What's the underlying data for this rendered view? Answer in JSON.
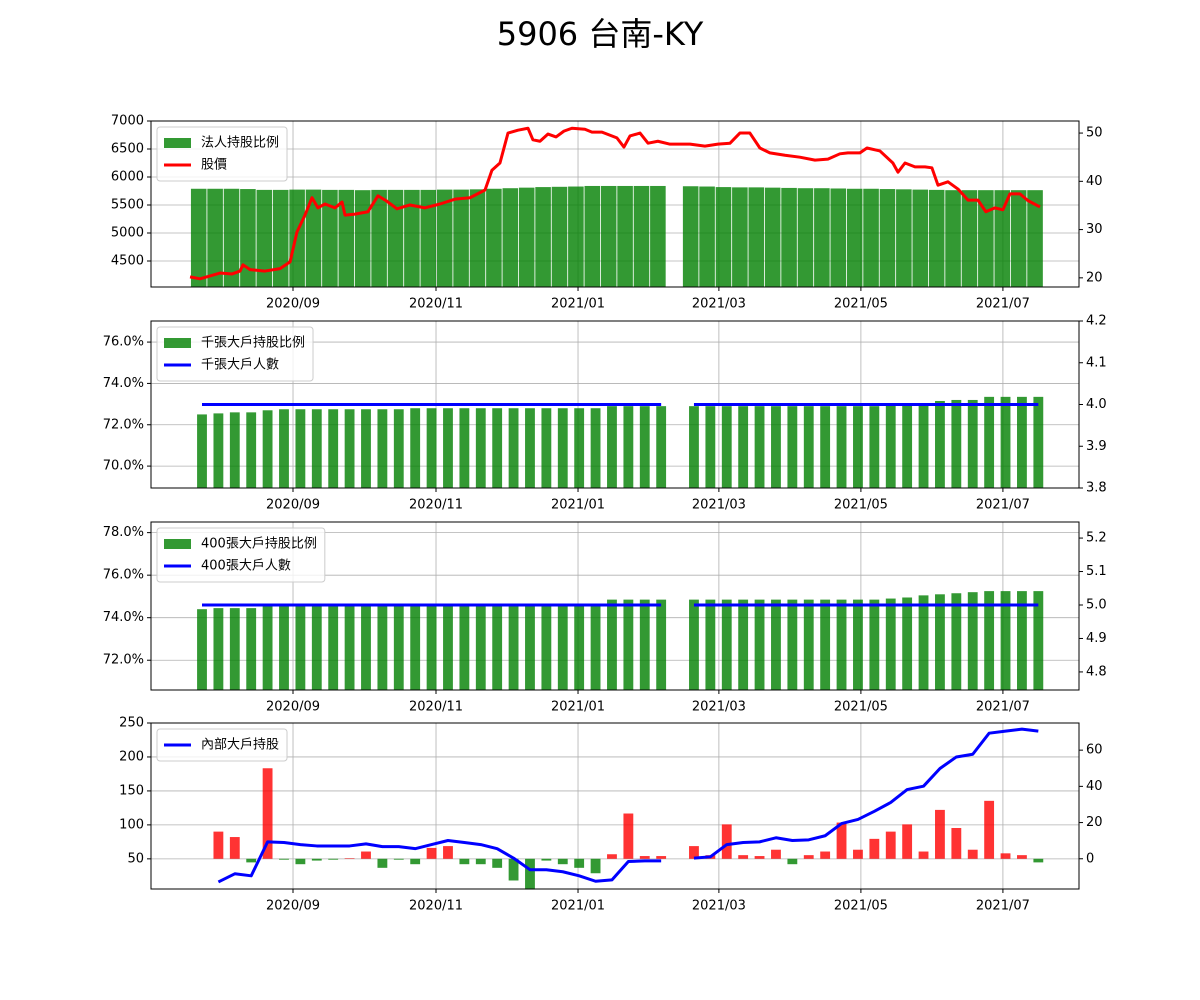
{
  "title": "5906 台南-KY",
  "chart_data": [
    {
      "type": "combo",
      "grid": true,
      "legend": "upper left",
      "xlim": [
        -3.11,
        53.48
      ],
      "xticks": [
        {
          "value": 5.55,
          "label": "2020/09"
        },
        {
          "value": 14.27,
          "label": "2020/11"
        },
        {
          "value": 22.93,
          "label": "2021/01"
        },
        {
          "value": 31.52,
          "label": "2021/03"
        },
        {
          "value": 40.18,
          "label": "2021/05"
        },
        {
          "value": 48.84,
          "label": "2021/07"
        }
      ],
      "ylim": [
        4036,
        7000
      ],
      "yticks": [
        4500,
        5000,
        5500,
        6000,
        6500,
        7000
      ],
      "y2lim": [
        18.1,
        52.5
      ],
      "y2ticks": [
        20,
        30,
        40,
        50
      ],
      "series": [
        {
          "name": "法人持股比例",
          "type": "bar",
          "color": "#008000",
          "x": [
            -0.2,
            0.8,
            1.8,
            2.8,
            3.8,
            4.8,
            5.8,
            6.8,
            7.8,
            8.8,
            9.8,
            10.8,
            11.8,
            12.8,
            13.8,
            14.8,
            15.8,
            16.8,
            17.8,
            18.8,
            19.8,
            20.8,
            21.8,
            22.8,
            23.8,
            24.8,
            25.8,
            26.8,
            27.8,
            28.8,
            29.8,
            30.8,
            31.8,
            32.8,
            33.8,
            34.8,
            35.8,
            36.8,
            37.8,
            38.8,
            39.8,
            40.8,
            41.8,
            42.8,
            43.8,
            44.8,
            45.8,
            46.8,
            47.8,
            48.8,
            49.8,
            50.8
          ],
          "values": [
            5790,
            5790,
            5790,
            5785,
            5770,
            5770,
            5775,
            5775,
            5770,
            5770,
            5765,
            5770,
            5770,
            5770,
            5770,
            5775,
            5775,
            5780,
            5790,
            5800,
            5810,
            5820,
            5825,
            5830,
            5840,
            5840,
            5840,
            5840,
            5840,
            null,
            5835,
            5830,
            5820,
            5815,
            5815,
            5810,
            5805,
            5800,
            5800,
            5795,
            5790,
            5790,
            5785,
            5780,
            5775,
            5770,
            5765,
            5765,
            5765,
            5765,
            5765,
            5765
          ]
        },
        {
          "name": "股價",
          "type": "line",
          "axis": "y2",
          "color": "#ff0000",
          "x": [
            -0.73,
            -0.12,
            0.49,
            1.1,
            1.83,
            2.32,
            2.5,
            2.93,
            3.84,
            4.76,
            5.37,
            5.79,
            6.28,
            6.71,
            7.07,
            7.5,
            8.11,
            8.54,
            8.72,
            9.33,
            10.12,
            10.73,
            11.22,
            11.89,
            12.68,
            13.6,
            14.51,
            15.43,
            16.34,
            17.26,
            17.68,
            18.17,
            18.66,
            19.27,
            19.88,
            20.18,
            20.61,
            21.1,
            21.59,
            22.07,
            22.56,
            23.35,
            23.78,
            24.39,
            25.3,
            25.73,
            26.1,
            26.71,
            27.2,
            27.8,
            28.54,
            29.76,
            30.67,
            31.46,
            32.2,
            32.8,
            33.41,
            34.02,
            34.63,
            35.55,
            36.46,
            37.38,
            38.17,
            38.9,
            39.39,
            40.12,
            40.55,
            41.34,
            42.13,
            42.44,
            42.87,
            43.48,
            44.09,
            44.51,
            44.88,
            45.49,
            46.1,
            46.71,
            47.32,
            47.8,
            48.35,
            48.84,
            49.27,
            49.88,
            50.37,
            51.1
          ],
          "values": [
            20.2,
            19.8,
            20.4,
            21.0,
            20.8,
            21.4,
            22.7,
            21.7,
            21.4,
            21.9,
            23.3,
            29.5,
            33.0,
            36.6,
            34.5,
            35.3,
            34.5,
            35.7,
            33.0,
            33.2,
            33.7,
            37.0,
            36.0,
            34.3,
            35.1,
            34.5,
            35.3,
            36.3,
            36.6,
            38.2,
            42.3,
            43.8,
            50.0,
            50.6,
            51.0,
            48.6,
            48.3,
            49.8,
            49.2,
            50.4,
            51.0,
            50.8,
            50.2,
            50.2,
            49.0,
            47.1,
            49.4,
            50.0,
            47.9,
            48.3,
            47.7,
            47.7,
            47.3,
            47.7,
            47.9,
            50.0,
            50.0,
            46.9,
            45.9,
            45.4,
            45.0,
            44.4,
            44.6,
            45.7,
            45.9,
            45.9,
            46.9,
            46.3,
            43.8,
            41.9,
            43.8,
            43.0,
            43.0,
            42.8,
            39.2,
            39.9,
            38.4,
            36.1,
            36.1,
            33.7,
            34.5,
            34.1,
            37.4,
            37.4,
            36.0,
            34.7
          ]
        }
      ]
    },
    {
      "type": "combo",
      "grid": true,
      "legend": "upper left",
      "xlim": [
        -3.11,
        53.48
      ],
      "xticks": [
        {
          "value": 5.55,
          "label": "2020/09"
        },
        {
          "value": 14.27,
          "label": "2020/11"
        },
        {
          "value": 22.93,
          "label": "2021/01"
        },
        {
          "value": 31.52,
          "label": "2021/03"
        },
        {
          "value": 40.18,
          "label": "2021/05"
        },
        {
          "value": 48.84,
          "label": "2021/07"
        }
      ],
      "categories": [
        null,
        null,
        null,
        null,
        null,
        null,
        null,
        null,
        null,
        null,
        null,
        null,
        null,
        null,
        null,
        null,
        null,
        null,
        null,
        null,
        null,
        null,
        null,
        null,
        null,
        null,
        null,
        null,
        null,
        null,
        null,
        null,
        null,
        null,
        null,
        null,
        null,
        null,
        null,
        null,
        null,
        null,
        null,
        null,
        null,
        null,
        null,
        null,
        null,
        null,
        null,
        null
      ],
      "ylim": [
        68.94,
        77.02
      ],
      "yticks": [
        {
          "value": 70,
          "label": "70.0%"
        },
        {
          "value": 72,
          "label": "72.0%"
        },
        {
          "value": 74,
          "label": "74.0%"
        },
        {
          "value": 76,
          "label": "76.0%"
        }
      ],
      "y2lim": [
        3.8,
        4.2
      ],
      "y2ticks": [
        3.8,
        3.9,
        {
          "value": 4,
          "label": "4.0"
        },
        4.1,
        4.2
      ],
      "series": [
        {
          "name": "千張大戶持股比例",
          "type": "bar",
          "color": "#008000",
          "values": [
            72.5,
            72.55,
            72.6,
            72.6,
            72.7,
            72.75,
            72.75,
            72.75,
            72.75,
            72.75,
            72.75,
            72.75,
            72.75,
            72.8,
            72.8,
            72.8,
            72.8,
            72.8,
            72.8,
            72.8,
            72.8,
            72.8,
            72.8,
            72.8,
            72.8,
            72.9,
            72.9,
            72.9,
            72.9,
            null,
            72.9,
            72.9,
            72.9,
            72.9,
            72.9,
            72.9,
            72.9,
            72.9,
            72.9,
            72.9,
            72.9,
            72.9,
            73.0,
            73.05,
            73.05,
            73.15,
            73.2,
            73.2,
            73.35,
            73.35,
            73.35,
            73.35
          ]
        },
        {
          "name": "千張大戶人數",
          "type": "line",
          "axis": "y2",
          "color": "#0000ff",
          "values": [
            4,
            4,
            4,
            4,
            4,
            4,
            4,
            4,
            4,
            4,
            4,
            4,
            4,
            4,
            4,
            4,
            4,
            4,
            4,
            4,
            4,
            4,
            4,
            4,
            4,
            4,
            4,
            4,
            4,
            null,
            4,
            4,
            4,
            4,
            4,
            4,
            4,
            4,
            4,
            4,
            4,
            4,
            4,
            4,
            4,
            4,
            4,
            4,
            4,
            4,
            4,
            4
          ]
        }
      ]
    },
    {
      "type": "combo",
      "grid": true,
      "legend": "upper left",
      "xlim": [
        -3.11,
        53.48
      ],
      "xticks": [
        {
          "value": 5.55,
          "label": "2020/09"
        },
        {
          "value": 14.27,
          "label": "2020/11"
        },
        {
          "value": 22.93,
          "label": "2021/01"
        },
        {
          "value": 31.52,
          "label": "2021/03"
        },
        {
          "value": 40.18,
          "label": "2021/05"
        },
        {
          "value": 48.84,
          "label": "2021/07"
        }
      ],
      "categories": [
        null,
        null,
        null,
        null,
        null,
        null,
        null,
        null,
        null,
        null,
        null,
        null,
        null,
        null,
        null,
        null,
        null,
        null,
        null,
        null,
        null,
        null,
        null,
        null,
        null,
        null,
        null,
        null,
        null,
        null,
        null,
        null,
        null,
        null,
        null,
        null,
        null,
        null,
        null,
        null,
        null,
        null,
        null,
        null,
        null,
        null,
        null,
        null,
        null,
        null,
        null,
        null
      ],
      "ylim": [
        70.6,
        78.5
      ],
      "yticks": [
        {
          "value": 72,
          "label": "72.0%"
        },
        {
          "value": 74,
          "label": "74.0%"
        },
        {
          "value": 76,
          "label": "76.0%"
        },
        {
          "value": 78,
          "label": "78.0%"
        }
      ],
      "y2lim": [
        4.746,
        5.248
      ],
      "y2ticks": [
        4.8,
        4.9,
        {
          "value": 5,
          "label": "5.0"
        },
        5.1,
        5.2
      ],
      "series": [
        {
          "name": "400張大戶持股比例",
          "type": "bar",
          "color": "#008000",
          "values": [
            74.4,
            74.45,
            74.45,
            74.45,
            74.6,
            74.65,
            74.65,
            74.65,
            74.65,
            74.65,
            74.65,
            74.65,
            74.65,
            74.65,
            74.65,
            74.65,
            74.65,
            74.65,
            74.65,
            74.65,
            74.65,
            74.65,
            74.65,
            74.65,
            74.65,
            74.85,
            74.85,
            74.85,
            74.85,
            null,
            74.85,
            74.85,
            74.85,
            74.85,
            74.85,
            74.85,
            74.85,
            74.85,
            74.85,
            74.85,
            74.85,
            74.85,
            74.9,
            74.95,
            75.05,
            75.1,
            75.15,
            75.2,
            75.25,
            75.25,
            75.25,
            75.25
          ]
        },
        {
          "name": "400張大戶人數",
          "type": "line",
          "axis": "y2",
          "color": "#0000ff",
          "values": [
            5,
            5,
            5,
            5,
            5,
            5,
            5,
            5,
            5,
            5,
            5,
            5,
            5,
            5,
            5,
            5,
            5,
            5,
            5,
            5,
            5,
            5,
            5,
            5,
            5,
            5,
            5,
            5,
            5,
            null,
            5,
            5,
            5,
            5,
            5,
            5,
            5,
            5,
            5,
            5,
            5,
            5,
            5,
            5,
            5,
            5,
            5,
            5,
            5,
            5,
            5,
            5
          ]
        }
      ]
    },
    {
      "type": "combo",
      "grid": true,
      "legend": "upper left",
      "xlim": [
        -3.11,
        53.48
      ],
      "xticks": [
        {
          "value": 5.55,
          "label": "2020/09"
        },
        {
          "value": 14.27,
          "label": "2020/11"
        },
        {
          "value": 22.93,
          "label": "2021/01"
        },
        {
          "value": 31.52,
          "label": "2021/03"
        },
        {
          "value": 40.18,
          "label": "2021/05"
        },
        {
          "value": 48.84,
          "label": "2021/07"
        }
      ],
      "categories": [
        null,
        null,
        null,
        null,
        null,
        null,
        null,
        null,
        null,
        null,
        null,
        null,
        null,
        null,
        null,
        null,
        null,
        null,
        null,
        null,
        null,
        null,
        null,
        null,
        null,
        null,
        null,
        null,
        null,
        null,
        null,
        null,
        null,
        null,
        null,
        null,
        null,
        null,
        null,
        null,
        null,
        null,
        null,
        null,
        null,
        null,
        null,
        null,
        null,
        null,
        null,
        null
      ],
      "ylim": [
        5.6,
        250
      ],
      "yticks": [
        50,
        100,
        150,
        200,
        250
      ],
      "y2lim": [
        -16.7,
        75
      ],
      "y2ticks": [
        0,
        20,
        40,
        60
      ],
      "series": [
        {
          "type": "bar",
          "axis": "y2",
          "color": "#ff0000",
          "negative_color": "#008000",
          "values": [
            null,
            15,
            12,
            -2,
            50,
            -0.5,
            -3,
            -1,
            -0.5,
            0.3,
            4,
            -5,
            -0.5,
            -3,
            6,
            7,
            -3,
            -3,
            -5,
            -12,
            -17,
            -1,
            -3,
            -5,
            -8,
            2.5,
            25,
            1.5,
            1.5,
            null,
            7,
            2,
            19,
            2,
            1.5,
            5,
            -3,
            2,
            4,
            20,
            5,
            11,
            15,
            19,
            4,
            27,
            17,
            5,
            32,
            3,
            2,
            -2
          ]
        },
        {
          "name": "內部大戶持股",
          "type": "line",
          "color": "#0000ff",
          "values": [
            null,
            16,
            28,
            25,
            75,
            74,
            71,
            69,
            69,
            69,
            72,
            68,
            68,
            65,
            71,
            77,
            74,
            71,
            65,
            51,
            34,
            34,
            31,
            25,
            17,
            19,
            46,
            47,
            47,
            null,
            51,
            53,
            71,
            74,
            75,
            81,
            77,
            78,
            84,
            102,
            108,
            120,
            133,
            152,
            157,
            183,
            200,
            204,
            235,
            238,
            241,
            238
          ]
        }
      ]
    }
  ]
}
